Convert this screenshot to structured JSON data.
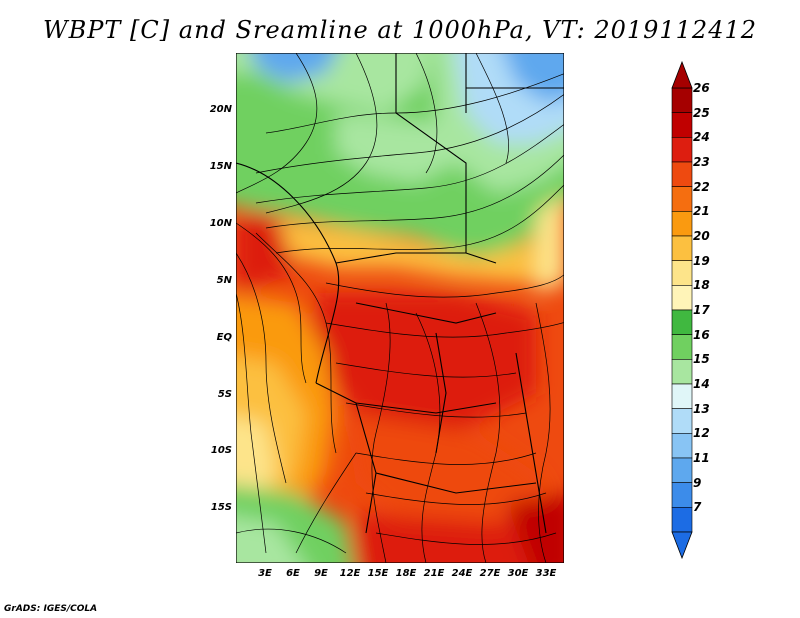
{
  "title": "WBPT [C] and Sreamline at 1000hPa, VT: 2019112412",
  "footer": "GrADS: IGES/COLA",
  "lat_labels": [
    "20N",
    "15N",
    "10N",
    "5N",
    "EQ",
    "5S",
    "10S",
    "15S"
  ],
  "lon_labels": [
    "3E",
    "6E",
    "9E",
    "12E",
    "15E",
    "18E",
    "21E",
    "24E",
    "27E",
    "30E",
    "33E"
  ],
  "colorbar": {
    "labels": [
      "26",
      "25",
      "24",
      "23",
      "22",
      "21",
      "20",
      "19",
      "18",
      "17",
      "16",
      "15",
      "14",
      "13",
      "12",
      "11",
      "9",
      "7"
    ],
    "colors": [
      "#a50000",
      "#c00000",
      "#dd1e10",
      "#ee4a10",
      "#f56e10",
      "#fa9a10",
      "#fcc040",
      "#fde48a",
      "#fff4b8",
      "#40b840",
      "#70d060",
      "#a8e6a0",
      "#e0f6f8",
      "#b0dcf8",
      "#88c4f4",
      "#5ea8ee",
      "#3c8cea",
      "#1c6ce4"
    ]
  }
}
